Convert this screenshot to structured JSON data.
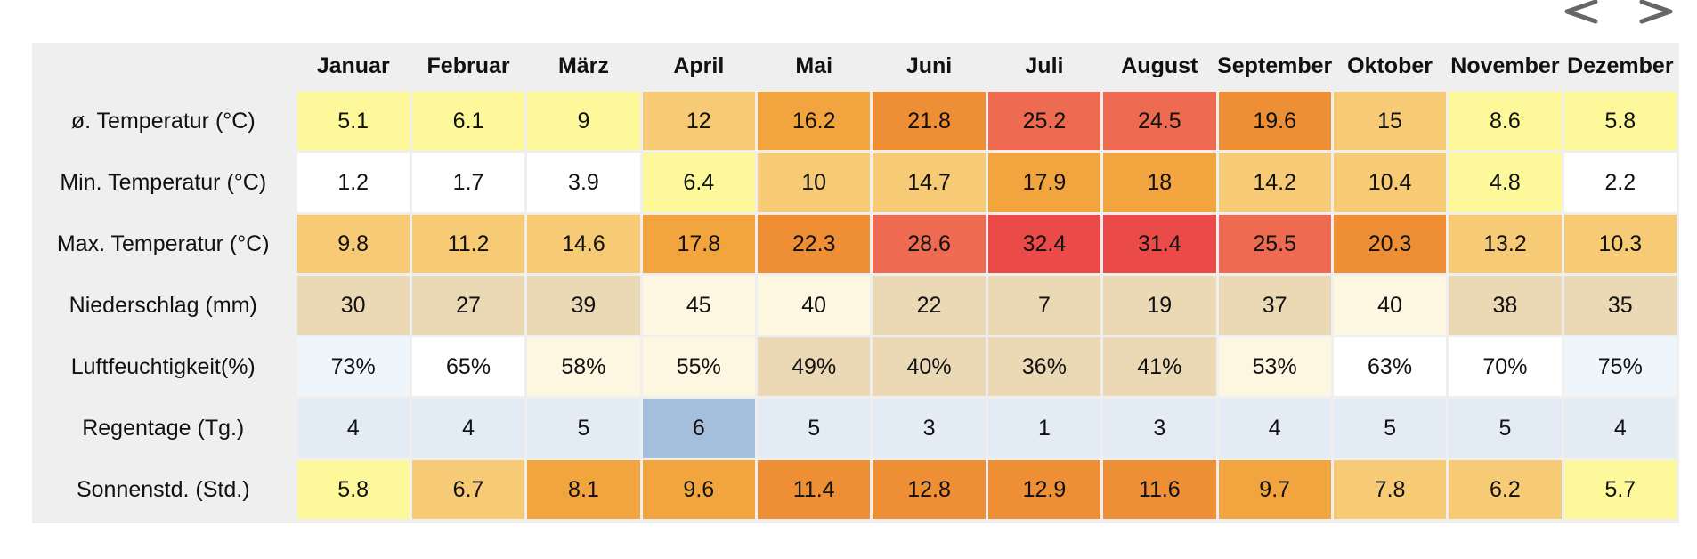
{
  "nav": {
    "prev_icon": "chevron-left-icon",
    "next_icon": "chevron-right-icon"
  },
  "chart_data": {
    "type": "table",
    "title": "",
    "columns": [
      "Januar",
      "Februar",
      "März",
      "April",
      "Mai",
      "Juni",
      "Juli",
      "August",
      "September",
      "Oktober",
      "November",
      "Dezember"
    ],
    "rows": [
      {
        "label": "ø. Temperatur (°C)",
        "values": [
          "5.1",
          "6.1",
          "9",
          "12",
          "16.2",
          "21.8",
          "25.2",
          "24.5",
          "19.6",
          "15",
          "8.6",
          "5.8"
        ],
        "colors": [
          "#fdf99b",
          "#fdf99b",
          "#fdf99b",
          "#f7cb76",
          "#f2a43f",
          "#ef8f35",
          "#ee6a50",
          "#ee6a50",
          "#ef8f35",
          "#f7cb76",
          "#fdf99b",
          "#fdf99b"
        ]
      },
      {
        "label": "Min. Temperatur (°C)",
        "values": [
          "1.2",
          "1.7",
          "3.9",
          "6.4",
          "10",
          "14.7",
          "17.9",
          "18",
          "14.2",
          "10.4",
          "4.8",
          "2.2"
        ],
        "colors": [
          "#ffffff",
          "#ffffff",
          "#ffffff",
          "#fdf99b",
          "#f7cb76",
          "#f7cb76",
          "#f2a43f",
          "#f2a43f",
          "#f7cb76",
          "#f7cb76",
          "#fdf99b",
          "#ffffff"
        ]
      },
      {
        "label": "Max. Temperatur (°C)",
        "values": [
          "9.8",
          "11.2",
          "14.6",
          "17.8",
          "22.3",
          "28.6",
          "32.4",
          "31.4",
          "25.5",
          "20.3",
          "13.2",
          "10.3"
        ],
        "colors": [
          "#f7cb76",
          "#f7cb76",
          "#f7cb76",
          "#f2a43f",
          "#ef8f35",
          "#ee6a50",
          "#eb4b48",
          "#eb4b48",
          "#ee6a50",
          "#ef8f35",
          "#f7cb76",
          "#f7cb76"
        ]
      },
      {
        "label": "Niederschlag (mm)",
        "values": [
          "30",
          "27",
          "39",
          "45",
          "40",
          "22",
          "7",
          "19",
          "37",
          "40",
          "38",
          "35"
        ],
        "colors": [
          "#ebd9b5",
          "#ebd9b5",
          "#ebd9b5",
          "#fdf6e1",
          "#fdf6e1",
          "#ebd9b5",
          "#ebd9b5",
          "#ebd9b5",
          "#ebd9b5",
          "#fdf6e1",
          "#ebd9b5",
          "#ebd9b5"
        ]
      },
      {
        "label": "Luftfeuchtigkeit(%)",
        "values": [
          "73%",
          "65%",
          "58%",
          "55%",
          "49%",
          "40%",
          "36%",
          "41%",
          "53%",
          "63%",
          "70%",
          "75%"
        ],
        "colors": [
          "#eef5fb",
          "#ffffff",
          "#fdf6e1",
          "#fdf6e1",
          "#ebd9b5",
          "#ebd9b5",
          "#ebd9b5",
          "#ebd9b5",
          "#fdf6e1",
          "#ffffff",
          "#ffffff",
          "#eef5fb"
        ]
      },
      {
        "label": "Regentage (Tg.)",
        "values": [
          "4",
          "4",
          "5",
          "6",
          "5",
          "3",
          "1",
          "3",
          "4",
          "5",
          "5",
          "4"
        ],
        "colors": [
          "#e3ebf4",
          "#e3ebf4",
          "#e3ebf4",
          "#a3bfdc",
          "#e3ebf4",
          "#e3ebf4",
          "#e3ebf4",
          "#e3ebf4",
          "#e3ebf4",
          "#e3ebf4",
          "#e3ebf4",
          "#e3ebf4"
        ]
      },
      {
        "label": "Sonnenstd. (Std.)",
        "values": [
          "5.8",
          "6.7",
          "8.1",
          "9.6",
          "11.4",
          "12.8",
          "12.9",
          "11.6",
          "9.7",
          "7.8",
          "6.2",
          "5.7"
        ],
        "colors": [
          "#fdf99b",
          "#f7cb76",
          "#f2a43f",
          "#f2a43f",
          "#ef8f35",
          "#ef8f35",
          "#ef8f35",
          "#ef8f35",
          "#f2a43f",
          "#f7cb76",
          "#f7cb76",
          "#fdf99b"
        ]
      }
    ]
  }
}
